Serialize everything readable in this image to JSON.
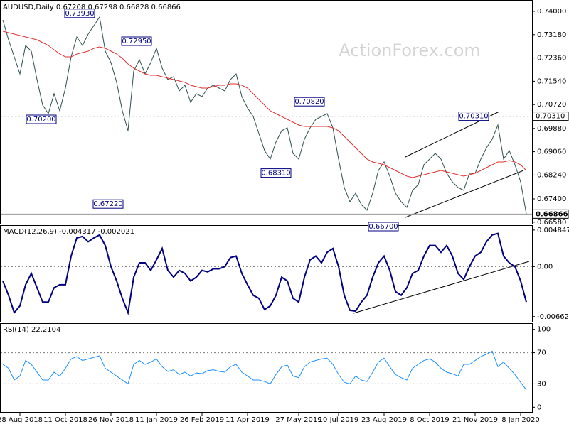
{
  "chart_data": {
    "type": "multi-panel",
    "watermark": "ActionForex.com",
    "categories": [
      null,
      null,
      null,
      "28 Aug 2018",
      null,
      null,
      null,
      null,
      null,
      null,
      null,
      "11 Oct 2018",
      null,
      null,
      null,
      null,
      null,
      null,
      null,
      "26 Nov 2018",
      null,
      null,
      null,
      null,
      null,
      null,
      null,
      "11 Jan 2019",
      null,
      null,
      null,
      null,
      null,
      null,
      null,
      "26 Feb 2019",
      null,
      null,
      null,
      null,
      null,
      null,
      null,
      "11 Apr 2019",
      null,
      null,
      null,
      null,
      null,
      null,
      null,
      null,
      "27 May 2019",
      null,
      null,
      null,
      null,
      null,
      null,
      "10 Jul 2019",
      null,
      null,
      null,
      null,
      null,
      null,
      null,
      "23 Aug 2019",
      null,
      null,
      null,
      null,
      null,
      null,
      null,
      "8 Oct 2019",
      null,
      null,
      null,
      null,
      null,
      null,
      null,
      "21 Nov 2019",
      null,
      null,
      null,
      null,
      null,
      null,
      null,
      "8 Jan 2020",
      null
    ],
    "panels": [
      {
        "type": "line",
        "title": "AUDUSD,Daily",
        "ohlc": [
          {
            "value": 0.67208,
            "label": "0.67208"
          },
          {
            "value": 0.67298,
            "label": "0.67298"
          },
          {
            "value": 0.66828,
            "label": "0.66828"
          },
          {
            "value": 0.66866,
            "label": "0.66866"
          }
        ],
        "ylim": [
          0.665,
          0.744
        ],
        "yticks": [
          {
            "value": 0.74,
            "label": "0.74000"
          },
          {
            "value": 0.7318,
            "label": "0.73180"
          },
          {
            "value": 0.7236,
            "label": "0.72360"
          },
          {
            "value": 0.7154,
            "label": "0.71540"
          },
          {
            "value": 0.7072,
            "label": "0.70720"
          },
          {
            "value": 0.6988,
            "label": "0.69880"
          },
          {
            "value": 0.6906,
            "label": "0.69060"
          },
          {
            "value": 0.6824,
            "label": "0.68240"
          },
          {
            "value": 0.674,
            "label": "0.67400"
          },
          {
            "value": 0.6658,
            "label": "0.66580"
          }
        ],
        "series": [
          {
            "color": "#2f4f4f",
            "values": [
              0.737,
              0.73,
              0.724,
              0.718,
              0.728,
              0.726,
              0.716,
              0.707,
              0.704,
              0.711,
              0.705,
              0.713,
              0.724,
              0.731,
              0.728,
              0.732,
              0.735,
              0.738,
              0.726,
              0.722,
              0.715,
              0.705,
              0.698,
              0.719,
              0.723,
              0.718,
              0.722,
              0.727,
              0.72,
              0.716,
              0.717,
              0.712,
              0.714,
              0.708,
              0.711,
              0.71,
              0.713,
              0.714,
              0.713,
              0.712,
              0.716,
              0.718,
              0.71,
              0.706,
              0.703,
              0.697,
              0.691,
              0.688,
              0.694,
              0.698,
              0.699,
              0.69,
              0.688,
              0.695,
              0.699,
              0.702,
              0.703,
              0.704,
              0.699,
              0.688,
              0.678,
              0.673,
              0.676,
              0.672,
              0.67,
              0.676,
              0.684,
              0.687,
              0.682,
              0.676,
              0.673,
              0.671,
              0.677,
              0.679,
              0.686,
              0.688,
              0.69,
              0.688,
              0.683,
              0.68,
              0.678,
              0.677,
              0.683,
              0.683,
              0.688,
              0.692,
              0.695,
              0.7,
              0.688,
              0.691,
              0.686,
              0.68,
              0.6687
            ]
          },
          {
            "color": "#e03030",
            "values": [
              0.733,
              0.7325,
              0.732,
              0.7315,
              0.731,
              0.7305,
              0.73,
              0.729,
              0.728,
              0.7265,
              0.725,
              0.724,
              0.724,
              0.725,
              0.7255,
              0.726,
              0.727,
              0.7275,
              0.727,
              0.726,
              0.725,
              0.7235,
              0.7215,
              0.72,
              0.719,
              0.718,
              0.7175,
              0.7175,
              0.717,
              0.7165,
              0.716,
              0.7155,
              0.715,
              0.714,
              0.7135,
              0.713,
              0.713,
              0.7135,
              0.714,
              0.714,
              0.7145,
              0.7145,
              0.714,
              0.713,
              0.711,
              0.709,
              0.707,
              0.705,
              0.704,
              0.703,
              0.702,
              0.701,
              0.7,
              0.6995,
              0.6995,
              0.6995,
              0.6995,
              0.6995,
              0.699,
              0.698,
              0.696,
              0.694,
              0.692,
              0.69,
              0.688,
              0.687,
              0.6865,
              0.686,
              0.685,
              0.684,
              0.683,
              0.682,
              0.6815,
              0.682,
              0.6825,
              0.683,
              0.6835,
              0.684,
              0.6835,
              0.683,
              0.6825,
              0.682,
              0.6825,
              0.683,
              0.684,
              0.685,
              0.686,
              0.687,
              0.687,
              0.6875,
              0.687,
              0.686,
              0.684
            ]
          }
        ],
        "annotations": [
          {
            "value": 0.7393,
            "label": "0.73930"
          },
          {
            "value": 0.7295,
            "label": "0.72950"
          },
          {
            "value": 0.702,
            "label": "0.70200"
          },
          {
            "value": 0.6722,
            "label": "0.67220"
          },
          {
            "value": 0.6831,
            "label": "0.68310"
          },
          {
            "value": 0.7082,
            "label": "0.70820"
          },
          {
            "value": 0.667,
            "label": "0.66700"
          },
          {
            "value": 0.7031,
            "label": "0.70310"
          }
        ],
        "markers": [
          {
            "value": 0.7031,
            "label": "0.70310",
            "style": "dotted"
          },
          {
            "value": 0.66866,
            "label": "0.66866",
            "style": "solid"
          }
        ]
      },
      {
        "type": "line",
        "title": "MACD(12,26,9)",
        "title_values": [
          -0.004317,
          -0.002021
        ],
        "ylim": [
          -0.0074,
          0.0054
        ],
        "yticks": [
          0.004847,
          {
            "value": 0,
            "label": "0.00"
          },
          -0.006624
        ],
        "levels": [
          0
        ],
        "series": [
          {
            "color": "#000080",
            "values": [
              -0.0019,
              -0.0038,
              -0.0061,
              -0.0052,
              -0.0024,
              -0.0009,
              -0.0028,
              -0.0047,
              -0.0047,
              -0.0028,
              -0.0024,
              -0.0024,
              0.0014,
              0.0038,
              0.004,
              0.0033,
              0.0038,
              0.0042,
              0.0028,
              0,
              -0.0019,
              -0.0042,
              -0.0061,
              -0.0014,
              0.0005,
              0.0005,
              -0.0005,
              0.0009,
              0.0024,
              -0.0005,
              -0.0014,
              -0.0005,
              -0.0009,
              -0.0019,
              -0.0014,
              -0.0005,
              -0.0007,
              -0.0003,
              -0.0003,
              0,
              0.0012,
              0.0014,
              -0.0009,
              -0.0024,
              -0.0038,
              -0.0042,
              -0.0057,
              -0.0052,
              -0.0038,
              -0.0014,
              -0.0019,
              -0.0042,
              -0.0047,
              -0.0014,
              0.0009,
              0.0014,
              0.0005,
              0.0019,
              0.0024,
              0,
              -0.0038,
              -0.0058,
              -0.0059,
              -0.0047,
              -0.0038,
              -0.0014,
              0.0005,
              0.0014,
              -0.0005,
              -0.0033,
              -0.0038,
              -0.0028,
              -0.0009,
              -0.0005,
              0.0014,
              0.0028,
              0.0028,
              0.0019,
              0.0028,
              0.0014,
              -0.0009,
              -0.0017,
              0,
              0.0014,
              0.0019,
              0.0033,
              0.0042,
              0.0044,
              0.0014,
              0.0005,
              0,
              -0.0019,
              -0.0047
            ]
          }
        ]
      },
      {
        "type": "line",
        "title": "RSI(14)",
        "title_values": [
          22.2104
        ],
        "ylim": [
          -7,
          107
        ],
        "yticks": [
          100,
          70,
          30,
          0
        ],
        "levels": [
          70,
          30
        ],
        "series": [
          {
            "color": "#1e90ff",
            "values": [
              55,
              50,
              35,
              40,
              60,
              55,
              45,
              35,
              35,
              45,
              40,
              50,
              62,
              65,
              60,
              62,
              64,
              66,
              50,
              45,
              40,
              35,
              30,
              55,
              60,
              55,
              58,
              62,
              52,
              46,
              48,
              42,
              45,
              40,
              44,
              43,
              47,
              48,
              46,
              45,
              52,
              55,
              45,
              40,
              35,
              35,
              33,
              30,
              42,
              52,
              54,
              40,
              38,
              52,
              58,
              60,
              62,
              63,
              55,
              42,
              32,
              30,
              40,
              35,
              33,
              45,
              58,
              63,
              52,
              42,
              38,
              35,
              50,
              55,
              60,
              62,
              58,
              50,
              45,
              43,
              40,
              55,
              55,
              60,
              65,
              68,
              72,
              52,
              58,
              50,
              42,
              32,
              22.2104
            ]
          }
        ]
      }
    ]
  }
}
